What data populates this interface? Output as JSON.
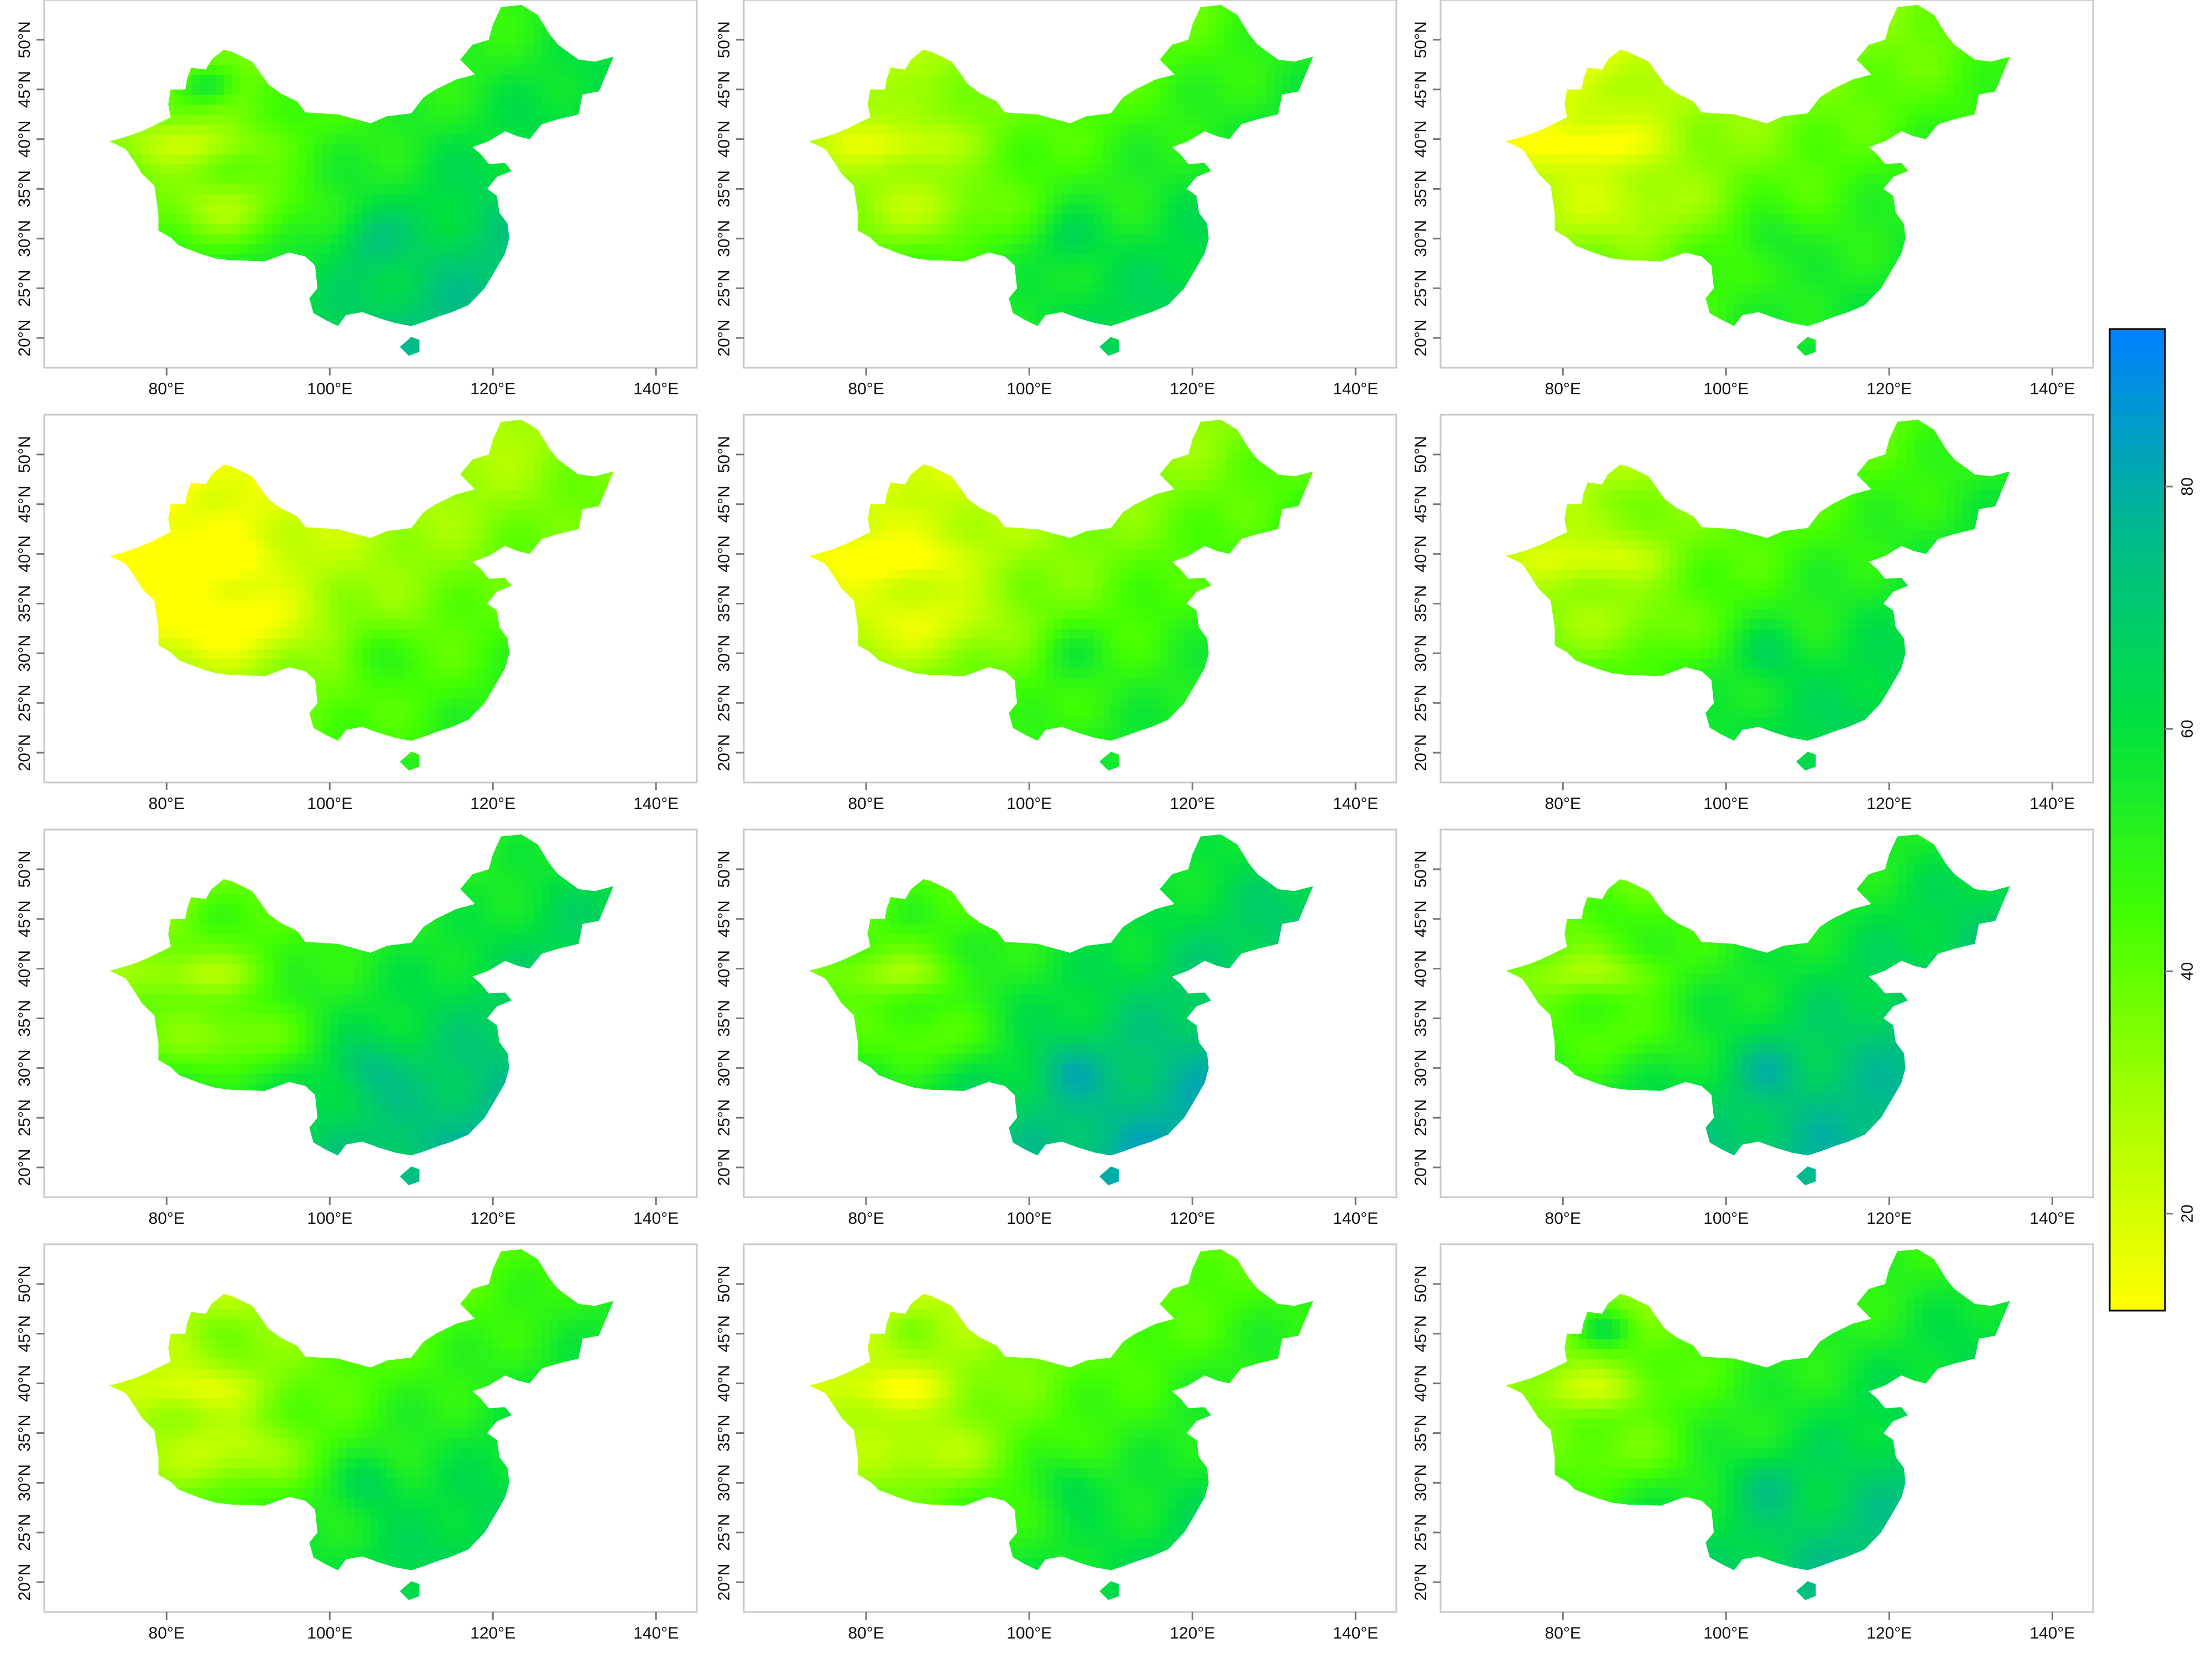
{
  "map_data": {
    "type": "raster-map-grid",
    "region": "China",
    "rows": 4,
    "cols": 3,
    "x_ticks": [
      80,
      100,
      120,
      140
    ],
    "x_tick_labels": [
      "80°E",
      "100°E",
      "120°E",
      "140°E"
    ],
    "y_ticks": [
      20,
      25,
      30,
      35,
      40,
      45,
      50
    ],
    "y_tick_labels": [
      "20°N",
      "25°N",
      "30°N",
      "35°N",
      "40°N",
      "45°N",
      "50°N"
    ],
    "lon_range": [
      65,
      145
    ],
    "lat_range": [
      17,
      54
    ],
    "colorbar": {
      "min": 12,
      "max": 93,
      "ticks": [
        20,
        40,
        60,
        80
      ],
      "tick_labels": [
        "20",
        "40",
        "60",
        "80"
      ],
      "colors": [
        "#ffff00",
        "#aaff00",
        "#44ff00",
        "#00e040",
        "#00b890",
        "#0080ff"
      ]
    },
    "panels": [
      {
        "mean": 55
      },
      {
        "mean": 48
      },
      {
        "mean": 40
      },
      {
        "mean": 32
      },
      {
        "mean": 38
      },
      {
        "mean": 48
      },
      {
        "mean": 58
      },
      {
        "mean": 62
      },
      {
        "mean": 60
      },
      {
        "mean": 48
      },
      {
        "mean": 45
      },
      {
        "mean": 55
      }
    ]
  }
}
